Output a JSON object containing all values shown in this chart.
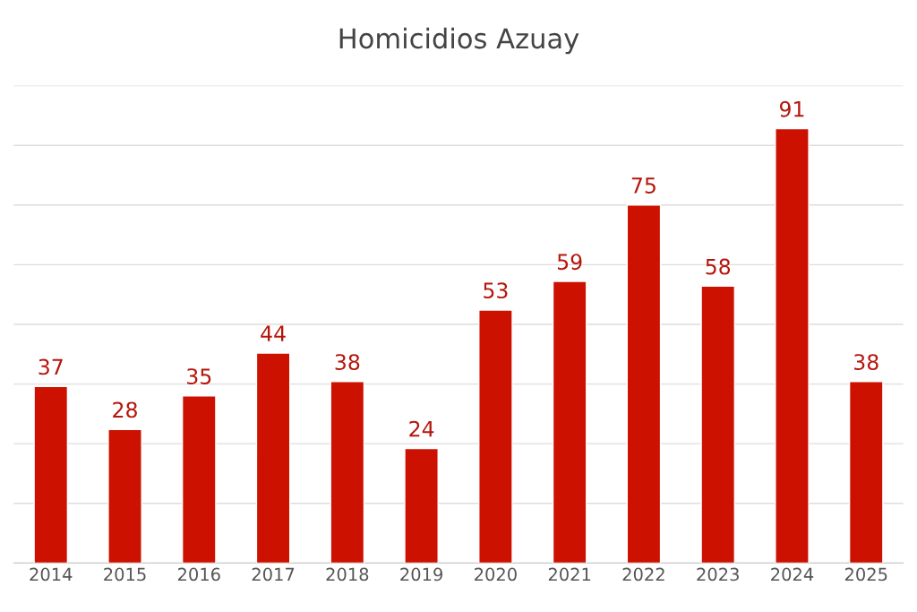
{
  "chart_data": {
    "type": "bar",
    "title": "Homicidios Azuay",
    "categories": [
      "2014",
      "2015",
      "2016",
      "2017",
      "2018",
      "2019",
      "2020",
      "2021",
      "2022",
      "2023",
      "2024",
      "2025"
    ],
    "values": [
      37,
      28,
      35,
      44,
      38,
      24,
      53,
      59,
      75,
      58,
      91,
      38
    ],
    "color": "#cc1100",
    "data_labels": true,
    "ylim": [
      0,
      100
    ],
    "yticks": [
      {
        "value": 0,
        "label": null
      },
      {
        "value": 12.5,
        "label": null
      },
      {
        "value": 25,
        "label": null
      },
      {
        "value": 37.5,
        "label": null
      },
      {
        "value": 50,
        "label": null
      },
      {
        "value": 62.5,
        "label": null
      },
      {
        "value": 75,
        "label": null
      },
      {
        "value": 87.5,
        "label": null
      },
      {
        "value": 100,
        "label": null
      }
    ],
    "grid": "y",
    "tick_labels": "x"
  }
}
